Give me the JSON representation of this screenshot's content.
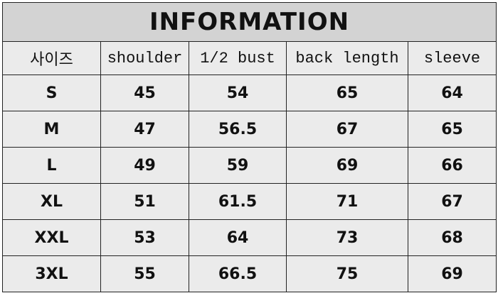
{
  "title": "INFORMATION",
  "headers": [
    "사이즈",
    "shoulder",
    "1/2 bust",
    "back length",
    "sleeve"
  ],
  "rows": [
    [
      "S",
      "45",
      "54",
      "65",
      "64"
    ],
    [
      "M",
      "47",
      "56.5",
      "67",
      "65"
    ],
    [
      "L",
      "49",
      "59",
      "69",
      "66"
    ],
    [
      "XL",
      "51",
      "61.5",
      "71",
      "67"
    ],
    [
      "XXL",
      "53",
      "64",
      "73",
      "68"
    ],
    [
      "3XL",
      "55",
      "66.5",
      "75",
      "69"
    ]
  ]
}
